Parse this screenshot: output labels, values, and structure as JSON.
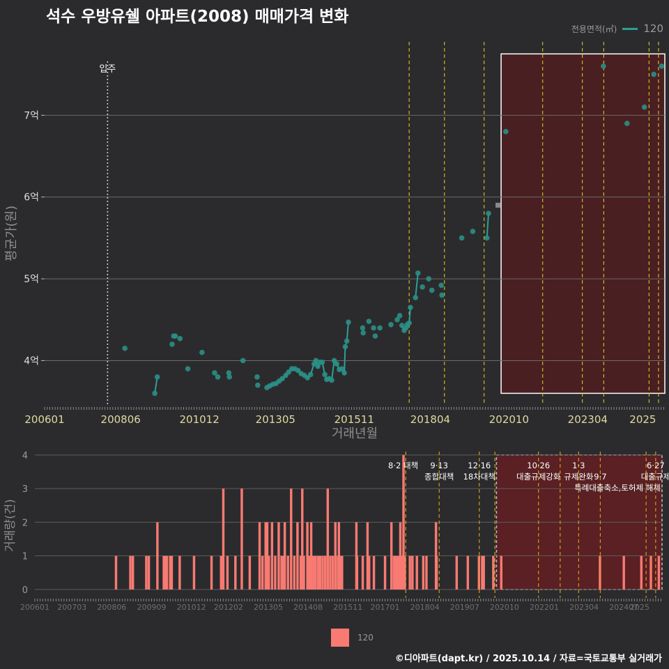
{
  "title": "석수 우방유쉘 아파트(2008) 매매가격 변화",
  "legend_top": {
    "title": "전용면적(㎡)",
    "label": "120",
    "color": "#2aa198"
  },
  "legend_bottom": {
    "label": "120",
    "color": "#f87a72"
  },
  "footer": "©디아파트(dapt.kr) / 2025.10.14 / 자료=국토교통부 실거래가",
  "chart_data": [
    {
      "type": "line",
      "title": "석수 우방유쉘 아파트(2008) 매매가격 변화",
      "xlabel": "거래년월",
      "ylabel": "평균가(원)",
      "x_ticks": [
        "200601",
        "200806",
        "201012",
        "201305",
        "201511",
        "201804",
        "202010",
        "202304",
        "2025"
      ],
      "y_ticks": [
        {
          "value": 4.0,
          "label": "4억"
        },
        {
          "value": 5.0,
          "label": "5억"
        },
        {
          "value": 6.0,
          "label": "6억"
        },
        {
          "value": 7.0,
          "label": "7억"
        }
      ],
      "ylim": [
        3.45,
        8.0
      ],
      "xlim": [
        2006.0,
        2025.7
      ],
      "move_in": {
        "x": 2008.0,
        "label": "입주"
      },
      "policy_lines": [
        2017.58,
        2018.7,
        2019.96,
        2021.82,
        2023.08,
        2023.76,
        2025.2,
        2025.5
      ],
      "highlight": {
        "x0": 2020.5,
        "x1": 2025.7,
        "y0": 3.6,
        "y1": 7.75
      },
      "series": [
        {
          "name": "120",
          "connected": [
            [
              [
                2009.5,
                3.6
              ],
              [
                2009.58,
                3.8
              ]
            ],
            [
              [
                2013.06,
                3.67
              ],
              [
                2013.15,
                3.69
              ],
              [
                2013.25,
                3.71
              ],
              [
                2013.35,
                3.72
              ],
              [
                2013.45,
                3.75
              ],
              [
                2013.55,
                3.78
              ],
              [
                2013.66,
                3.82
              ],
              [
                2013.75,
                3.86
              ],
              [
                2013.85,
                3.9
              ],
              [
                2013.95,
                3.9
              ],
              [
                2014.05,
                3.88
              ],
              [
                2014.15,
                3.84
              ],
              [
                2014.25,
                3.82
              ],
              [
                2014.35,
                3.79
              ],
              [
                2014.45,
                3.83
              ],
              [
                2014.56,
                3.96
              ],
              [
                2014.62,
                4.0
              ],
              [
                2014.68,
                3.93
              ],
              [
                2014.75,
                3.98
              ],
              [
                2014.82,
                3.98
              ],
              [
                2014.9,
                3.83
              ],
              [
                2014.96,
                3.77
              ],
              [
                2015.04,
                3.78
              ],
              [
                2015.12,
                3.76
              ],
              [
                2015.2,
                4.0
              ],
              [
                2015.28,
                3.96
              ],
              [
                2015.36,
                3.89
              ],
              [
                2015.44,
                3.9
              ],
              [
                2015.52,
                3.85
              ],
              [
                2015.55,
                4.17
              ],
              [
                2015.6,
                4.24
              ],
              [
                2015.65,
                4.47
              ]
            ],
            [
              [
                2017.35,
                4.43
              ],
              [
                2017.42,
                4.37
              ],
              [
                2017.48,
                4.4
              ],
              [
                2017.52,
                4.44
              ],
              [
                2017.58,
                4.46
              ],
              [
                2017.62,
                4.65
              ]
            ],
            [
              [
                2017.78,
                4.77
              ],
              [
                2017.86,
                5.07
              ]
            ],
            [
              [
                2020.05,
                5.5
              ],
              [
                2020.1,
                5.8
              ]
            ]
          ],
          "points": [
            [
              2008.55,
              4.15
            ],
            [
              2009.5,
              3.6
            ],
            [
              2009.58,
              3.8
            ],
            [
              2010.05,
              4.2
            ],
            [
              2010.1,
              4.3
            ],
            [
              2010.15,
              4.3
            ],
            [
              2010.3,
              4.27
            ],
            [
              2010.55,
              3.9
            ],
            [
              2011.0,
              4.1
            ],
            [
              2011.4,
              3.85
            ],
            [
              2011.5,
              3.8
            ],
            [
              2011.85,
              3.85
            ],
            [
              2011.87,
              3.8
            ],
            [
              2012.3,
              4.0
            ],
            [
              2012.75,
              3.8
            ],
            [
              2012.77,
              3.7
            ],
            [
              2013.06,
              3.67
            ],
            [
              2013.15,
              3.69
            ],
            [
              2013.25,
              3.71
            ],
            [
              2013.35,
              3.72
            ],
            [
              2013.45,
              3.75
            ],
            [
              2013.55,
              3.78
            ],
            [
              2013.66,
              3.82
            ],
            [
              2013.75,
              3.86
            ],
            [
              2013.85,
              3.9
            ],
            [
              2013.95,
              3.9
            ],
            [
              2014.05,
              3.88
            ],
            [
              2014.15,
              3.84
            ],
            [
              2014.25,
              3.82
            ],
            [
              2014.35,
              3.79
            ],
            [
              2014.45,
              3.83
            ],
            [
              2014.56,
              3.96
            ],
            [
              2014.62,
              4.0
            ],
            [
              2014.68,
              3.93
            ],
            [
              2014.75,
              3.98
            ],
            [
              2014.82,
              3.98
            ],
            [
              2014.9,
              3.83
            ],
            [
              2014.96,
              3.77
            ],
            [
              2015.04,
              3.78
            ],
            [
              2015.12,
              3.76
            ],
            [
              2015.2,
              4.0
            ],
            [
              2015.28,
              3.96
            ],
            [
              2015.36,
              3.89
            ],
            [
              2015.44,
              3.9
            ],
            [
              2015.52,
              3.85
            ],
            [
              2015.55,
              4.17
            ],
            [
              2015.6,
              4.24
            ],
            [
              2015.65,
              4.47
            ],
            [
              2016.1,
              4.4
            ],
            [
              2016.12,
              4.34
            ],
            [
              2016.3,
              4.48
            ],
            [
              2016.45,
              4.4
            ],
            [
              2016.5,
              4.3
            ],
            [
              2016.65,
              4.4
            ],
            [
              2017.0,
              4.44
            ],
            [
              2017.2,
              4.5
            ],
            [
              2017.28,
              4.55
            ],
            [
              2017.35,
              4.43
            ],
            [
              2017.42,
              4.37
            ],
            [
              2017.48,
              4.4
            ],
            [
              2017.52,
              4.44
            ],
            [
              2017.58,
              4.46
            ],
            [
              2017.62,
              4.65
            ],
            [
              2017.78,
              4.77
            ],
            [
              2017.86,
              5.07
            ],
            [
              2018.0,
              4.9
            ],
            [
              2018.2,
              5.0
            ],
            [
              2018.3,
              4.86
            ],
            [
              2018.6,
              4.92
            ],
            [
              2018.62,
              4.8
            ],
            [
              2019.25,
              5.5
            ],
            [
              2019.6,
              5.58
            ],
            [
              2020.05,
              5.5
            ],
            [
              2020.1,
              5.8
            ],
            [
              2020.4,
              5.9
            ],
            [
              2020.65,
              6.8
            ],
            [
              2023.75,
              7.6
            ],
            [
              2024.5,
              6.9
            ],
            [
              2025.05,
              7.1
            ],
            [
              2025.35,
              7.5
            ],
            [
              2025.6,
              7.6
            ]
          ],
          "gray_points": [
            [
              2020.4,
              5.9
            ]
          ]
        }
      ]
    },
    {
      "type": "bar",
      "xlabel": "",
      "ylabel": "거래량(건)",
      "x_ticks": [
        "200601",
        "200703",
        "200806",
        "200909",
        "201012",
        "201202",
        "201305",
        "201408",
        "201511",
        "201701",
        "201804",
        "201907",
        "202010",
        "202201",
        "202304",
        "202407",
        "2025"
      ],
      "y_ticks": [
        0,
        1,
        2,
        3,
        4
      ],
      "ylim": [
        -0.25,
        4.1
      ],
      "xlim": [
        2006.0,
        2025.7
      ],
      "policy_lines": [
        2017.65,
        2018.7,
        2019.96,
        2020.45,
        2021.82,
        2022.5,
        2023.08,
        2023.76,
        2025.2,
        2025.5
      ],
      "annotations": [
        {
          "x": 2017.57,
          "lines": [
            "8·2 대책"
          ]
        },
        {
          "x": 2018.7,
          "lines": [
            "9·13",
            "종합대책"
          ]
        },
        {
          "x": 2019.96,
          "lines": [
            "12·16",
            "18차대책"
          ]
        },
        {
          "x": 2021.82,
          "lines": [
            "10·26",
            "대출규제강화"
          ]
        },
        {
          "x": 2023.08,
          "lines": [
            "1·3",
            "규제완화"
          ]
        },
        {
          "x": 2023.76,
          "lines": [
            "",
            "9·7"
          ]
        },
        {
          "x": 2024.3,
          "lines": [
            "",
            "",
            "특례대출축소,토허제 해제"
          ]
        },
        {
          "x": 2025.5,
          "lines": [
            "6·27",
            "대출규제"
          ]
        }
      ],
      "highlight": {
        "x0": 2020.5,
        "x1": 2025.7,
        "y0": 0,
        "y1": 4
      },
      "series": [
        {
          "name": "120",
          "x": [
            2008.55,
            2009.0,
            2009.08,
            2009.5,
            2009.58,
            2009.85,
            2010.05,
            2010.1,
            2010.15,
            2010.25,
            2010.3,
            2010.55,
            2011.0,
            2011.55,
            2011.85,
            2011.92,
            2012.05,
            2012.3,
            2012.5,
            2012.75,
            2013.06,
            2013.15,
            2013.25,
            2013.3,
            2013.35,
            2013.45,
            2013.55,
            2013.66,
            2013.75,
            2013.8,
            2013.85,
            2013.95,
            2014.05,
            2014.15,
            2014.25,
            2014.35,
            2014.4,
            2014.45,
            2014.56,
            2014.62,
            2014.68,
            2014.75,
            2014.82,
            2014.9,
            2014.96,
            2015.04,
            2015.12,
            2015.2,
            2015.28,
            2015.36,
            2015.44,
            2015.52,
            2015.55,
            2015.6,
            2015.65,
            2016.1,
            2016.12,
            2016.3,
            2016.45,
            2016.5,
            2016.65,
            2017.0,
            2017.2,
            2017.28,
            2017.35,
            2017.42,
            2017.48,
            2017.52,
            2017.58,
            2017.62,
            2017.78,
            2017.86,
            2018.0,
            2018.2,
            2018.3,
            2018.6,
            2018.62,
            2019.25,
            2019.6,
            2019.95,
            2020.05,
            2020.1,
            2020.4,
            2020.65,
            2023.75,
            2024.5,
            2025.05,
            2025.35,
            2025.6
          ],
          "values": [
            1,
            1,
            1,
            1,
            1,
            2,
            1,
            1,
            1,
            1,
            1,
            1,
            1,
            1,
            1,
            3,
            1,
            1,
            3,
            1,
            2,
            1,
            2,
            2,
            1,
            2,
            1,
            2,
            1,
            1,
            2,
            1,
            3,
            1,
            2,
            1,
            3,
            1,
            2,
            1,
            2,
            1,
            1,
            1,
            1,
            1,
            1,
            3,
            1,
            1,
            2,
            1,
            2,
            1,
            1,
            2,
            1,
            1,
            2,
            1,
            1,
            1,
            2,
            1,
            1,
            1,
            2,
            1,
            4,
            1,
            1,
            1,
            1,
            1,
            1,
            2,
            1,
            1,
            1,
            1,
            1,
            1,
            1,
            1,
            1,
            1,
            1,
            1,
            1
          ]
        }
      ]
    }
  ]
}
